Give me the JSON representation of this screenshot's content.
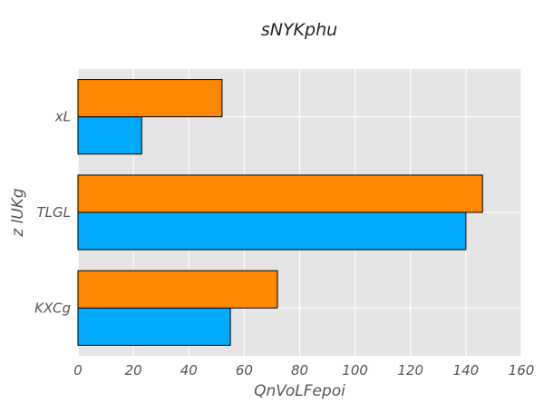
{
  "chart_data": {
    "type": "bar",
    "orientation": "horizontal",
    "title": "sNYKphu",
    "xlabel": "QnVoLFepoi",
    "ylabel": "z lUKg",
    "categories": [
      "KXCg",
      "TLGL",
      "xL"
    ],
    "series": [
      {
        "values": [
          55,
          140,
          23
        ]
      },
      {
        "values": [
          72,
          146,
          52
        ]
      }
    ],
    "xlim": [
      0,
      160
    ],
    "xticks": [
      "0",
      "20",
      "40",
      "60",
      "80",
      "100",
      "120",
      "140",
      "160"
    ],
    "grid": true,
    "legend": "none",
    "colors": {
      "background": "#e5e5e5",
      "grid": "#ffffff",
      "series": [
        "#00aaff",
        "#ff8800"
      ],
      "edge": "#000000"
    }
  }
}
